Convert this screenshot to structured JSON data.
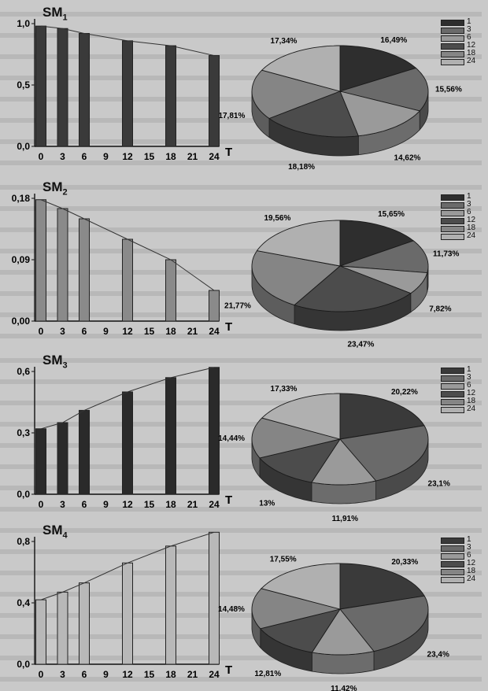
{
  "chart_data": [
    {
      "type": "bar",
      "title": "SM",
      "title_sub": "1",
      "xlabel": "T",
      "categories": [
        "0",
        "3",
        "6",
        "9",
        "12",
        "15",
        "18",
        "21",
        "24"
      ],
      "values": [
        0.98,
        0.96,
        0.92,
        null,
        0.86,
        null,
        0.82,
        null,
        0.74
      ],
      "ylim": [
        0,
        1.0
      ],
      "yticks": [
        "0,0",
        "0,5",
        "1,0"
      ],
      "ytick_values": [
        0,
        0.5,
        1.0
      ],
      "bar_color": "#3a3a3a",
      "pie": {
        "labels": [
          "1",
          "3",
          "6",
          "12",
          "18",
          "24"
        ],
        "values": [
          16.49,
          15.56,
          14.62,
          18.18,
          17.81,
          17.34
        ],
        "display": [
          "16,49%",
          "15,56%",
          "14,62%",
          "18,18%",
          "17,81%",
          "17,34%"
        ],
        "colors": [
          "#2e2e2e",
          "#6a6a6a",
          "#9a9a9a",
          "#4c4c4c",
          "#858585",
          "#b0b0b0"
        ]
      }
    },
    {
      "type": "bar",
      "title": "SM",
      "title_sub": "2",
      "xlabel": "T",
      "categories": [
        "0",
        "3",
        "6",
        "9",
        "12",
        "15",
        "18",
        "21",
        "24"
      ],
      "values": [
        0.178,
        0.165,
        0.15,
        null,
        0.12,
        null,
        0.09,
        null,
        0.045
      ],
      "ylim": [
        0,
        0.18
      ],
      "yticks": [
        "0,00",
        "0,09",
        "0,18"
      ],
      "ytick_values": [
        0,
        0.09,
        0.18
      ],
      "bar_color": "#8a8a8a",
      "pie": {
        "labels": [
          "1",
          "3",
          "6",
          "12",
          "18",
          "24"
        ],
        "values": [
          15.65,
          11.73,
          7.82,
          23.47,
          21.77,
          19.56
        ],
        "display": [
          "15,65%",
          "11,73%",
          "7,82%",
          "23,47%",
          "21,77%",
          "19,56%"
        ],
        "colors": [
          "#2e2e2e",
          "#6a6a6a",
          "#9a9a9a",
          "#4c4c4c",
          "#858585",
          "#b0b0b0"
        ]
      }
    },
    {
      "type": "bar",
      "title": "SM",
      "title_sub": "3",
      "xlabel": "T",
      "categories": [
        "0",
        "3",
        "6",
        "9",
        "12",
        "15",
        "18",
        "21",
        "24"
      ],
      "values": [
        0.32,
        0.35,
        0.41,
        null,
        0.5,
        null,
        0.57,
        null,
        0.62
      ],
      "ylim": [
        0,
        0.6
      ],
      "yticks": [
        "0,0",
        "0,3",
        "0,6"
      ],
      "ytick_values": [
        0,
        0.3,
        0.6
      ],
      "bar_color": "#2a2a2a",
      "pie": {
        "labels": [
          "1",
          "3",
          "6",
          "12",
          "18",
          "24"
        ],
        "values": [
          20.22,
          23.1,
          11.91,
          13,
          14.44,
          17.33
        ],
        "display": [
          "20,22%",
          "23,1%",
          "11,91%",
          "13%",
          "14,44%",
          "17,33%"
        ],
        "colors": [
          "#3a3a3a",
          "#6a6a6a",
          "#9a9a9a",
          "#4c4c4c",
          "#858585",
          "#b0b0b0"
        ]
      }
    },
    {
      "type": "bar",
      "title": "SM",
      "title_sub": "4",
      "xlabel": "T",
      "categories": [
        "0",
        "3",
        "6",
        "9",
        "12",
        "15",
        "18",
        "21",
        "24"
      ],
      "values": [
        0.42,
        0.47,
        0.53,
        null,
        0.66,
        null,
        0.77,
        null,
        0.86
      ],
      "ylim": [
        0,
        0.8
      ],
      "yticks": [
        "0,0",
        "0,4",
        "0,8"
      ],
      "ytick_values": [
        0,
        0.4,
        0.8
      ],
      "bar_color": "#b8b8b8",
      "pie": {
        "labels": [
          "1",
          "3",
          "6",
          "12",
          "18",
          "24"
        ],
        "values": [
          20.33,
          23.4,
          11.42,
          12.81,
          14.48,
          17.55
        ],
        "display": [
          "20,33%",
          "23,4%",
          "11,42%",
          "12,81%",
          "14,48%",
          "17,55%"
        ],
        "colors": [
          "#3a3a3a",
          "#6a6a6a",
          "#9a9a9a",
          "#4c4c4c",
          "#858585",
          "#b0b0b0"
        ]
      }
    }
  ]
}
